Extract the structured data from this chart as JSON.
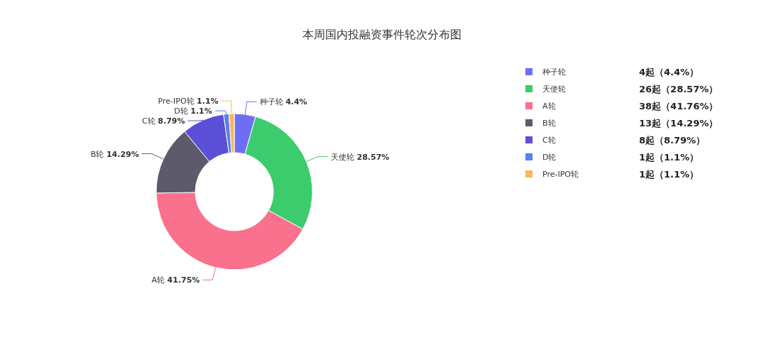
{
  "chart_data": {
    "type": "donut",
    "title": "本周国内投融资事件轮次分布图",
    "categories": [
      "种子轮",
      "天使轮",
      "A轮",
      "B轮",
      "C轮",
      "D轮",
      "Pre-IPO轮"
    ],
    "values": [
      4.4,
      28.57,
      41.75,
      14.29,
      8.79,
      1.1,
      1.1
    ],
    "value_labels": [
      "4.4%",
      "28.57%",
      "41.75%",
      "14.29%",
      "8.79%",
      "1.1%",
      "1.1%"
    ],
    "colors": [
      "#6e6ef5",
      "#3ccb6d",
      "#f9718c",
      "#5d5a6b",
      "#5a4fd6",
      "#5b7ef0",
      "#f9b85c"
    ],
    "legend": "right",
    "annotations": [
      "4起（4.4%）",
      "26起（28.57%）",
      "38起（41.76%）",
      "13起（14.29%）",
      "8起（8.79%）",
      "1起（1.1%）",
      "1起（1.1%）"
    ]
  }
}
